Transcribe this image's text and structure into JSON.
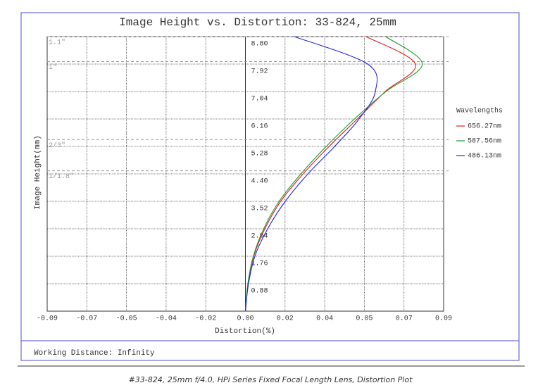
{
  "chart_data": {
    "type": "line",
    "title": "Image Height vs. Distortion: 33-824, 25mm",
    "x_label": "Distortion(%)",
    "y_label": "Image Height(mm)",
    "legend_title": "Wavelengths",
    "legend_position": "right",
    "grid": true,
    "xlim": [
      -0.09,
      0.09
    ],
    "xticks": [
      -0.09,
      {
        "value": -0.072,
        "label": "-0.07"
      },
      {
        "value": -0.054,
        "label": "-0.05"
      },
      {
        "value": -0.036,
        "label": "-0.04"
      },
      {
        "value": -0.018,
        "label": "-0.02"
      },
      {
        "value": 0,
        "label": "0.00"
      },
      {
        "value": 0.018,
        "label": "0.02"
      },
      {
        "value": 0.036,
        "label": "0.04"
      },
      {
        "value": 0.054,
        "label": "0.05"
      },
      {
        "value": 0.072,
        "label": "0.07"
      },
      0.09
    ],
    "ylim": [
      0,
      8.8
    ],
    "yticks": [
      0.88,
      1.76,
      2.64,
      3.52,
      {
        "value": 4.4,
        "label": "4.40"
      },
      5.28,
      6.16,
      7.04,
      7.92,
      {
        "value": 8.8,
        "label": "8.80"
      }
    ],
    "heights": [
      0,
      0.88,
      1.76,
      2.64,
      3.52,
      4.4,
      5.28,
      6.16,
      7.04,
      7.92,
      8.8
    ],
    "sensor_formats": [
      {
        "label": "1.1\"",
        "value": 8.8
      },
      {
        "label": "1\"",
        "value": 8.0
      },
      {
        "label": "2/3\"",
        "value": 5.5
      },
      {
        "label": "1/1.8\"",
        "value": 4.5
      }
    ],
    "series": [
      {
        "name": "656.27nm",
        "color": "#e8191b",
        "values": [
          0,
          0.0012,
          0.0038,
          0.0088,
          0.016,
          0.0262,
          0.038,
          0.0508,
          0.0635,
          0.0772,
          0.0548
        ]
      },
      {
        "name": "587.56nm",
        "color": "#1a9a2a",
        "values": [
          0,
          0.0011,
          0.0036,
          0.0083,
          0.0153,
          0.0252,
          0.0367,
          0.0495,
          0.0638,
          0.0803,
          0.0637
        ]
      },
      {
        "name": "486.13nm",
        "color": "#2424e0",
        "values": [
          0,
          0.0014,
          0.0043,
          0.0101,
          0.0181,
          0.0284,
          0.0405,
          0.0516,
          0.059,
          0.0555,
          0.0222
        ]
      }
    ],
    "footer": "Working Distance: Infinity",
    "caption": "#33-824, 25mm f/4.0, HPi Series Fixed Focal Length Lens, Distortion Plot"
  }
}
